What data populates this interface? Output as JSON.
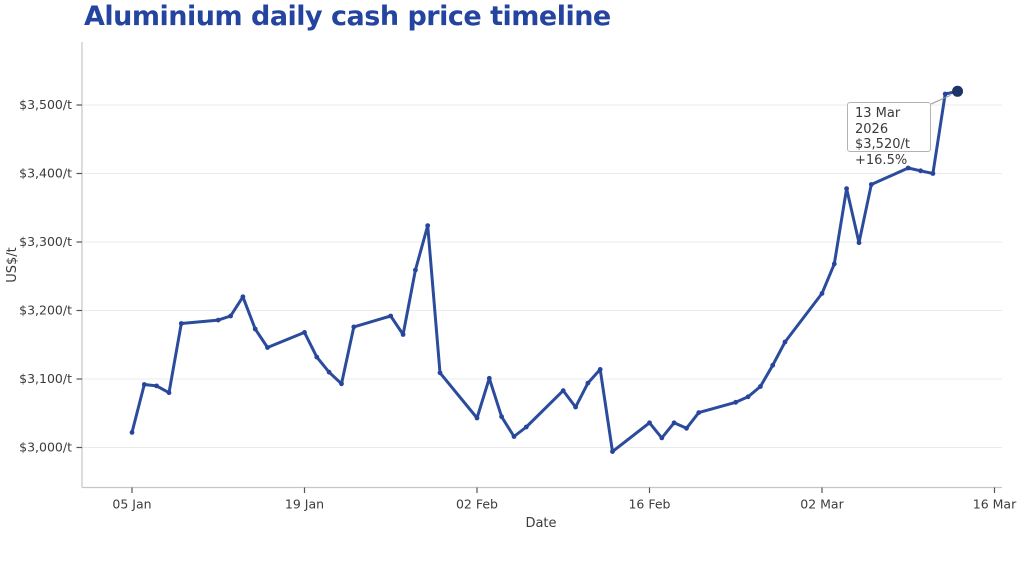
{
  "chart": {
    "title": "Aluminium daily cash price timeline",
    "xlabel": "Date",
    "ylabel": "US$/t"
  },
  "tooltip": {
    "date": "13 Mar 2026",
    "price": "$3,520/t",
    "change": "+16.5%"
  },
  "colors": {
    "title": "#2444a0",
    "line": "#2b4c9c",
    "marker": "#27459a",
    "end_dot": "#1e3468",
    "grid": "#ebebeb",
    "spine": "#c6c6c6",
    "tick": "#555555",
    "tick_text": "#3c3c3c",
    "leader": "#9a9a9a"
  },
  "chart_data": {
    "type": "line",
    "title": "Aluminium daily cash price timeline",
    "xlabel": "Date",
    "ylabel": "US$/t",
    "grid": "horizontal",
    "legend_position": "none",
    "ylim": [
      2940,
      3590
    ],
    "xlim": [
      "2026-01-01",
      "2026-03-17"
    ],
    "y_ticks": [
      {
        "value": 3000,
        "label": "$3,000/t"
      },
      {
        "value": 3100,
        "label": "$3,100/t"
      },
      {
        "value": 3200,
        "label": "$3,200/t"
      },
      {
        "value": 3300,
        "label": "$3,300/t"
      },
      {
        "value": 3400,
        "label": "$3,400/t"
      },
      {
        "value": 3500,
        "label": "$3,500/t"
      }
    ],
    "x_ticks": [
      {
        "date": "2026-01-05",
        "label": "05 Jan"
      },
      {
        "date": "2026-01-19",
        "label": "19 Jan"
      },
      {
        "date": "2026-02-02",
        "label": "02 Feb"
      },
      {
        "date": "2026-02-16",
        "label": "16 Feb"
      },
      {
        "date": "2026-03-02",
        "label": "02 Mar"
      },
      {
        "date": "2026-03-16",
        "label": "16 Mar"
      }
    ],
    "series": [
      {
        "name": "Aluminium daily cash price (US$/t)",
        "points": [
          [
            "2026-01-05",
            3022
          ],
          [
            "2026-01-06",
            3092
          ],
          [
            "2026-01-07",
            3090
          ],
          [
            "2026-01-08",
            3080
          ],
          [
            "2026-01-09",
            3181
          ],
          [
            "2026-01-12",
            3186
          ],
          [
            "2026-01-13",
            3192
          ],
          [
            "2026-01-14",
            3220
          ],
          [
            "2026-01-15",
            3173
          ],
          [
            "2026-01-16",
            3146
          ],
          [
            "2026-01-19",
            3168
          ],
          [
            "2026-01-20",
            3132
          ],
          [
            "2026-01-21",
            3110
          ],
          [
            "2026-01-22",
            3093
          ],
          [
            "2026-01-23",
            3176
          ],
          [
            "2026-01-26",
            3192
          ],
          [
            "2026-01-27",
            3165
          ],
          [
            "2026-01-28",
            3259
          ],
          [
            "2026-01-29",
            3324
          ],
          [
            "2026-01-30",
            3109
          ],
          [
            "2026-02-02",
            3043
          ],
          [
            "2026-02-03",
            3101
          ],
          [
            "2026-02-04",
            3045
          ],
          [
            "2026-02-05",
            3016
          ],
          [
            "2026-02-06",
            3030
          ],
          [
            "2026-02-09",
            3083
          ],
          [
            "2026-02-10",
            3059
          ],
          [
            "2026-02-11",
            3094
          ],
          [
            "2026-02-12",
            3114
          ],
          [
            "2026-02-13",
            2994
          ],
          [
            "2026-02-16",
            3036
          ],
          [
            "2026-02-17",
            3014
          ],
          [
            "2026-02-18",
            3036
          ],
          [
            "2026-02-19",
            3028
          ],
          [
            "2026-02-20",
            3051
          ],
          [
            "2026-02-23",
            3066
          ],
          [
            "2026-02-24",
            3074
          ],
          [
            "2026-02-25",
            3089
          ],
          [
            "2026-02-26",
            3120
          ],
          [
            "2026-02-27",
            3154
          ],
          [
            "2026-03-02",
            3225
          ],
          [
            "2026-03-03",
            3268
          ],
          [
            "2026-03-04",
            3378
          ],
          [
            "2026-03-05",
            3299
          ],
          [
            "2026-03-06",
            3384
          ],
          [
            "2026-03-09",
            3408
          ],
          [
            "2026-03-10",
            3404
          ],
          [
            "2026-03-11",
            3400
          ],
          [
            "2026-03-12",
            3516
          ],
          [
            "2026-03-13",
            3520
          ]
        ]
      }
    ],
    "annotation": {
      "date": "2026-03-13",
      "value": 3520,
      "label_lines": [
        "13 Mar 2026",
        "$3,520/t",
        "+16.5%"
      ]
    }
  }
}
